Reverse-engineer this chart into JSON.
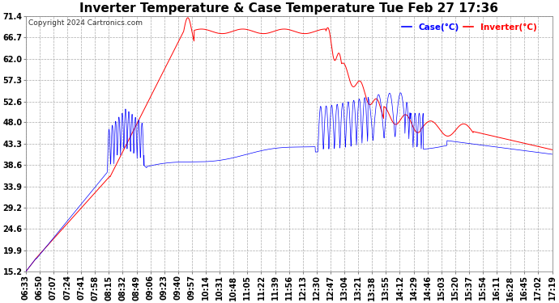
{
  "title": "Inverter Temperature & Case Temperature Tue Feb 27 17:36",
  "copyright": "Copyright 2024 Cartronics.com",
  "legend_labels": [
    "Case(°C)",
    "Inverter(°C)"
  ],
  "legend_colors": [
    "blue",
    "red"
  ],
  "yticks": [
    15.2,
    19.9,
    24.6,
    29.2,
    33.9,
    38.6,
    43.3,
    48.0,
    52.6,
    57.3,
    62.0,
    66.7,
    71.4
  ],
  "ylim": [
    15.2,
    71.4
  ],
  "xtick_labels": [
    "06:33",
    "06:50",
    "07:07",
    "07:24",
    "07:41",
    "07:58",
    "08:15",
    "08:32",
    "08:49",
    "09:06",
    "09:23",
    "09:40",
    "09:57",
    "10:14",
    "10:31",
    "10:48",
    "11:05",
    "11:22",
    "11:39",
    "11:56",
    "12:13",
    "12:30",
    "12:47",
    "13:04",
    "13:21",
    "13:38",
    "13:55",
    "14:12",
    "14:29",
    "14:46",
    "15:03",
    "15:20",
    "15:37",
    "15:54",
    "16:11",
    "16:28",
    "16:45",
    "17:02",
    "17:19"
  ],
  "background_color": "#ffffff",
  "grid_color": "#aaaaaa",
  "title_fontsize": 11,
  "axis_fontsize": 7,
  "copyright_fontsize": 6.5
}
